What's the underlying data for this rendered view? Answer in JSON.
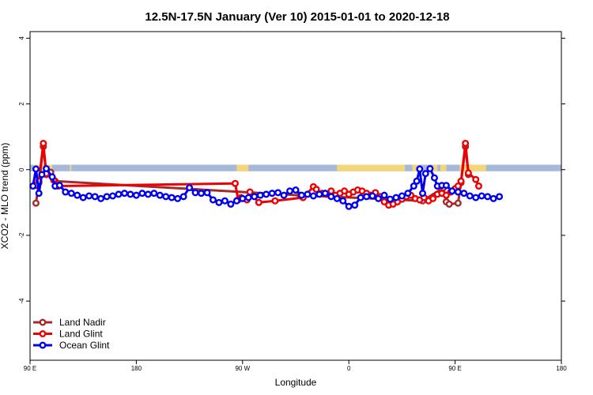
{
  "chart_data": {
    "type": "line",
    "title": "12.5N-17.5N January (Ver 10)   2015-01-01 to 2020-12-18",
    "xlabel": "Longitude",
    "ylabel": "XCO2 - MLO trend (ppm)",
    "xlim": [
      90,
      450
    ],
    "ylim": [
      -5.8,
      4.2
    ],
    "x_ticks": [
      {
        "value": 90,
        "label": "90 E"
      },
      {
        "value": 162,
        "label": "180"
      },
      {
        "value": 234,
        "label": "90 W"
      },
      {
        "value": 306,
        "label": "0"
      },
      {
        "value": 378,
        "label": "90 E"
      },
      {
        "value": 450,
        "label": "180"
      }
    ],
    "y_ticks": [
      {
        "value": 4,
        "label": "4"
      },
      {
        "value": 2,
        "label": "2"
      },
      {
        "value": 0,
        "label": "0"
      },
      {
        "value": -2,
        "label": "-2"
      },
      {
        "value": -4,
        "label": "-4"
      }
    ],
    "legend_position": "bottom-left",
    "land_strip": {
      "y_top": 0.15,
      "y_bottom": -0.05,
      "ocean_color": "#a7b9d9",
      "land_color": "#f4d67a",
      "land_ranges": [
        [
          92,
          105
        ],
        [
          117,
          118
        ],
        [
          230,
          238
        ],
        [
          298,
          344
        ],
        [
          349,
          353
        ],
        [
          363,
          366
        ],
        [
          368,
          372
        ],
        [
          381,
          399
        ]
      ]
    },
    "series": [
      {
        "name": "Land Nadir",
        "color": "#a52a2a",
        "points": [
          [
            94,
            -1.02
          ],
          [
            96,
            -0.4
          ],
          [
            99,
            0.7
          ],
          [
            101,
            -0.15
          ],
          [
            104,
            -0.08
          ],
          [
            107,
            -0.35
          ],
          [
            273,
            -0.78
          ],
          [
            356,
            -0.95
          ],
          [
            370,
            -0.55
          ],
          [
            372,
            -0.98
          ],
          [
            374,
            -1.05
          ],
          [
            380,
            -1.02
          ],
          [
            382,
            -0.4
          ],
          [
            385,
            0.7
          ],
          [
            387,
            -0.15
          ]
        ]
      },
      {
        "name": "Land Glint",
        "color": "#ee0000",
        "points": [
          [
            94,
            -0.48
          ],
          [
            96,
            -0.35
          ],
          [
            99,
            0.8
          ],
          [
            101,
            -0.12
          ],
          [
            106,
            -0.32
          ],
          [
            109,
            -0.5
          ],
          [
            229,
            -0.42
          ],
          [
            231,
            -0.92
          ],
          [
            233,
            -0.85
          ],
          [
            237,
            -0.92
          ],
          [
            239,
            -0.68
          ],
          [
            245,
            -1.0
          ],
          [
            256,
            -0.95
          ],
          [
            275,
            -0.85
          ],
          [
            282,
            -0.52
          ],
          [
            284,
            -0.6
          ],
          [
            288,
            -0.72
          ],
          [
            291,
            -0.75
          ],
          [
            294,
            -0.65
          ],
          [
            297,
            -0.78
          ],
          [
            300,
            -0.72
          ],
          [
            303,
            -0.65
          ],
          [
            306,
            -0.75
          ],
          [
            309,
            -0.68
          ],
          [
            312,
            -0.62
          ],
          [
            315,
            -0.65
          ],
          [
            318,
            -0.72
          ],
          [
            321,
            -0.78
          ],
          [
            324,
            -0.7
          ],
          [
            327,
            -0.82
          ],
          [
            330,
            -0.98
          ],
          [
            333,
            -1.08
          ],
          [
            336,
            -1.05
          ],
          [
            339,
            -0.98
          ],
          [
            342,
            -0.9
          ],
          [
            345,
            -0.82
          ],
          [
            348,
            -0.78
          ],
          [
            351,
            -0.88
          ],
          [
            354,
            -0.92
          ],
          [
            357,
            -0.85
          ],
          [
            360,
            -0.95
          ],
          [
            363,
            -0.88
          ],
          [
            366,
            -0.75
          ],
          [
            369,
            -0.72
          ],
          [
            372,
            -0.78
          ],
          [
            375,
            -0.68
          ],
          [
            378,
            -0.58
          ],
          [
            380,
            -0.5
          ],
          [
            382,
            -0.35
          ],
          [
            385,
            0.8
          ],
          [
            387,
            -0.1
          ],
          [
            392,
            -0.3
          ],
          [
            394,
            -0.5
          ]
        ]
      },
      {
        "name": "Ocean Glint",
        "color": "#0000ee",
        "points": [
          [
            92,
            -0.5
          ],
          [
            94,
            0.02
          ],
          [
            96,
            -0.72
          ],
          [
            98,
            -0.15
          ],
          [
            101,
            0.03
          ],
          [
            105,
            -0.22
          ],
          [
            107,
            -0.5
          ],
          [
            110,
            -0.48
          ],
          [
            114,
            -0.68
          ],
          [
            118,
            -0.72
          ],
          [
            122,
            -0.78
          ],
          [
            126,
            -0.85
          ],
          [
            130,
            -0.8
          ],
          [
            134,
            -0.82
          ],
          [
            138,
            -0.88
          ],
          [
            142,
            -0.82
          ],
          [
            146,
            -0.8
          ],
          [
            150,
            -0.75
          ],
          [
            154,
            -0.72
          ],
          [
            158,
            -0.75
          ],
          [
            162,
            -0.78
          ],
          [
            166,
            -0.72
          ],
          [
            170,
            -0.75
          ],
          [
            174,
            -0.72
          ],
          [
            178,
            -0.78
          ],
          [
            182,
            -0.82
          ],
          [
            186,
            -0.85
          ],
          [
            190,
            -0.88
          ],
          [
            194,
            -0.82
          ],
          [
            198,
            -0.55
          ],
          [
            202,
            -0.7
          ],
          [
            206,
            -0.72
          ],
          [
            210,
            -0.7
          ],
          [
            214,
            -0.92
          ],
          [
            218,
            -1.0
          ],
          [
            222,
            -0.95
          ],
          [
            226,
            -1.05
          ],
          [
            230,
            -0.95
          ],
          [
            234,
            -0.88
          ],
          [
            238,
            -0.85
          ],
          [
            242,
            -0.82
          ],
          [
            246,
            -0.78
          ],
          [
            250,
            -0.75
          ],
          [
            254,
            -0.72
          ],
          [
            258,
            -0.7
          ],
          [
            262,
            -0.78
          ],
          [
            266,
            -0.65
          ],
          [
            270,
            -0.62
          ],
          [
            274,
            -0.78
          ],
          [
            278,
            -0.75
          ],
          [
            282,
            -0.8
          ],
          [
            286,
            -0.75
          ],
          [
            290,
            -0.72
          ],
          [
            294,
            -0.82
          ],
          [
            298,
            -0.88
          ],
          [
            302,
            -0.95
          ],
          [
            306,
            -1.12
          ],
          [
            310,
            -1.08
          ],
          [
            314,
            -0.85
          ],
          [
            318,
            -0.82
          ],
          [
            322,
            -0.8
          ],
          [
            326,
            -0.88
          ],
          [
            330,
            -0.78
          ],
          [
            334,
            -0.9
          ],
          [
            338,
            -0.85
          ],
          [
            342,
            -0.8
          ],
          [
            346,
            -0.72
          ],
          [
            350,
            -0.5
          ],
          [
            352,
            -0.35
          ],
          [
            354,
            0.02
          ],
          [
            356,
            -0.72
          ],
          [
            358,
            -0.12
          ],
          [
            361,
            0.03
          ],
          [
            364,
            -0.25
          ],
          [
            366,
            -0.5
          ],
          [
            369,
            -0.48
          ],
          [
            372,
            -0.48
          ],
          [
            376,
            -0.65
          ],
          [
            380,
            -0.68
          ],
          [
            384,
            -0.72
          ],
          [
            388,
            -0.8
          ],
          [
            392,
            -0.85
          ],
          [
            396,
            -0.8
          ],
          [
            400,
            -0.82
          ],
          [
            404,
            -0.88
          ],
          [
            408,
            -0.82
          ]
        ]
      }
    ]
  }
}
